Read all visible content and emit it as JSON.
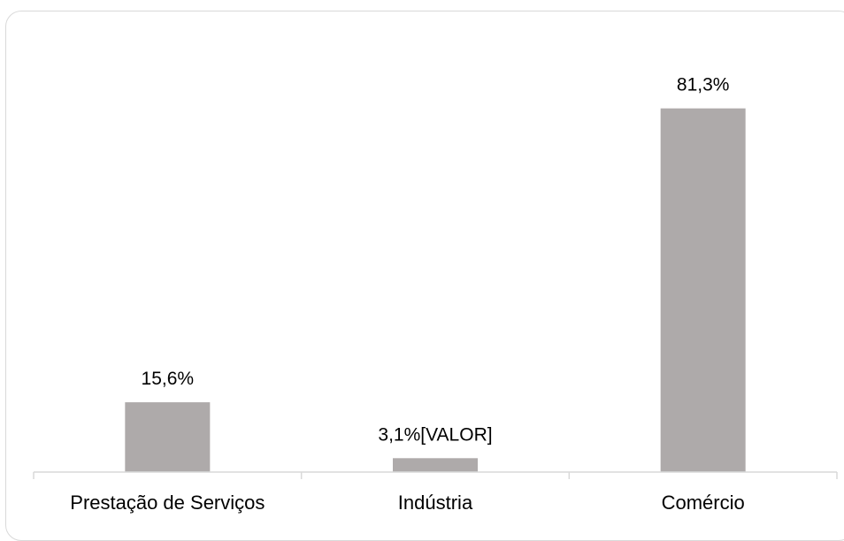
{
  "chart_data": {
    "type": "bar",
    "categories": [
      "Prestação de Serviços",
      "Indústria",
      "Comércio"
    ],
    "values": [
      15.6,
      3.1,
      81.3
    ],
    "data_labels": [
      "15,6%",
      "3,1%[VALOR]",
      "81,3%"
    ],
    "title": "",
    "xlabel": "",
    "ylabel": "",
    "ylim": [
      0,
      100
    ],
    "grid": false,
    "legend": "none",
    "bar_color": "#aeaaaa",
    "axis_color": "#d9d9d9"
  }
}
